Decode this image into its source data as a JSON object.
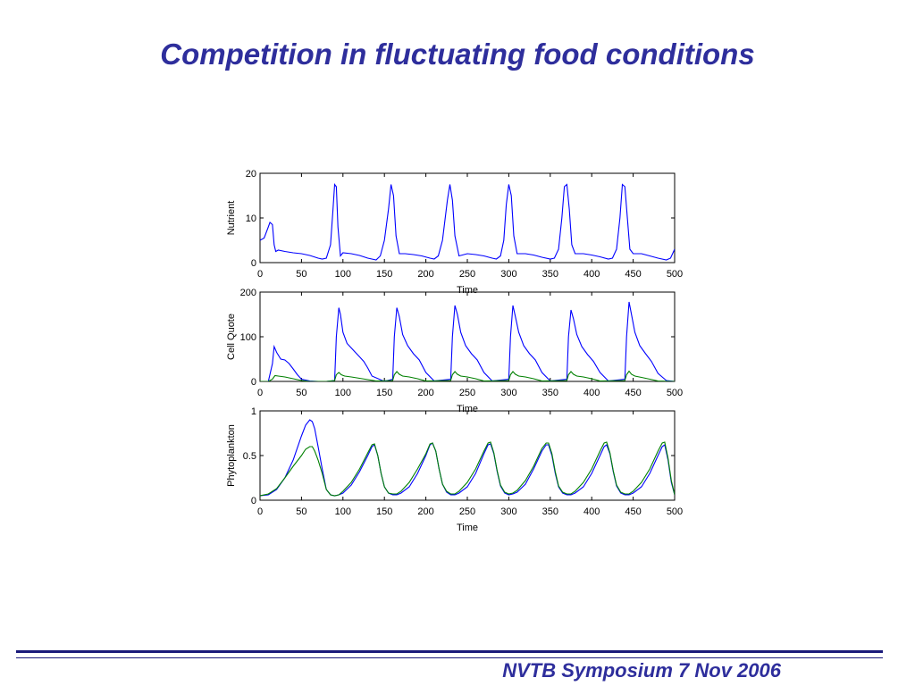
{
  "slide": {
    "title": "Competition in fluctuating food conditions",
    "footer": "NVTB Symposium 7 Nov 2006"
  },
  "colors": {
    "title": "#2e2e9c",
    "series_blue": "#0000ff",
    "series_green": "#008000"
  },
  "chart_data": [
    {
      "type": "line",
      "ylabel": "Nutrient",
      "xlabel": "Time",
      "xlim": [
        0,
        500
      ],
      "ylim": [
        0,
        20
      ],
      "xticks": [
        0,
        50,
        100,
        150,
        200,
        250,
        300,
        350,
        400,
        450,
        500
      ],
      "yticks": [
        0,
        10,
        20
      ],
      "grid": false,
      "series": [
        {
          "color": "#0000ff",
          "x": [
            0,
            5,
            10,
            12,
            15,
            17,
            19,
            22,
            30,
            40,
            50,
            60,
            70,
            75,
            80,
            85,
            88,
            90,
            92,
            94,
            97,
            100,
            110,
            120,
            130,
            140,
            145,
            150,
            155,
            158,
            161,
            164,
            168,
            175,
            185,
            195,
            205,
            210,
            215,
            220,
            226,
            229,
            232,
            235,
            240,
            250,
            260,
            270,
            280,
            285,
            290,
            294,
            297,
            300,
            303,
            306,
            310,
            320,
            330,
            340,
            350,
            355,
            360,
            364,
            367,
            370,
            373,
            376,
            380,
            390,
            400,
            410,
            420,
            425,
            430,
            434,
            437,
            440,
            443,
            446,
            450,
            460,
            470,
            480,
            490,
            495,
            500
          ],
          "y": [
            5,
            5.5,
            8,
            9,
            8.5,
            4,
            2.5,
            2.8,
            2.5,
            2.2,
            2,
            1.6,
            1,
            0.8,
            1,
            4,
            12,
            17.5,
            17,
            8,
            1.5,
            2.2,
            2,
            1.6,
            1,
            0.6,
            1.5,
            5,
            12,
            17.5,
            15,
            6,
            2,
            2,
            1.8,
            1.5,
            1,
            0.8,
            1.5,
            5,
            14,
            17.5,
            14,
            6,
            1.5,
            2,
            1.8,
            1.5,
            1,
            0.8,
            1.5,
            5,
            13,
            17.5,
            15,
            6,
            2,
            2,
            1.7,
            1.2,
            0.8,
            1,
            3,
            10,
            17,
            17.5,
            12,
            4,
            2,
            2,
            1.7,
            1.3,
            0.8,
            1,
            3,
            10,
            17.5,
            17,
            10,
            3,
            2,
            2,
            1.5,
            1,
            0.6,
            1,
            3
          ]
        }
      ]
    },
    {
      "type": "line",
      "ylabel": "Cell Quote",
      "xlabel": "Time",
      "xlim": [
        0,
        500
      ],
      "ylim": [
        0,
        200
      ],
      "xticks": [
        0,
        50,
        100,
        150,
        200,
        250,
        300,
        350,
        400,
        450,
        500
      ],
      "yticks": [
        0,
        100,
        200
      ],
      "grid": false,
      "series": [
        {
          "color": "#0000ff",
          "x": [
            0,
            10,
            15,
            17,
            20,
            25,
            30,
            35,
            40,
            45,
            50,
            60,
            70,
            80,
            90,
            92,
            95,
            97,
            100,
            105,
            110,
            115,
            120,
            125,
            130,
            135,
            150,
            160,
            162,
            165,
            168,
            172,
            178,
            185,
            192,
            200,
            210,
            230,
            232,
            235,
            238,
            242,
            248,
            255,
            262,
            270,
            280,
            300,
            302,
            305,
            308,
            312,
            318,
            325,
            332,
            340,
            350,
            370,
            372,
            375,
            378,
            382,
            388,
            395,
            402,
            410,
            420,
            440,
            442,
            445,
            448,
            452,
            458,
            465,
            472,
            480,
            490,
            500
          ],
          "y": [
            0,
            0,
            40,
            78,
            65,
            50,
            48,
            40,
            28,
            15,
            5,
            1,
            0,
            0,
            2,
            100,
            165,
            150,
            110,
            85,
            75,
            65,
            55,
            45,
            30,
            12,
            0,
            5,
            100,
            165,
            145,
            105,
            80,
            62,
            48,
            20,
            1,
            5,
            100,
            170,
            150,
            110,
            80,
            62,
            48,
            20,
            1,
            5,
            100,
            170,
            145,
            110,
            80,
            62,
            48,
            20,
            1,
            5,
            100,
            160,
            140,
            105,
            78,
            60,
            45,
            20,
            1,
            5,
            100,
            178,
            150,
            110,
            80,
            62,
            45,
            18,
            2,
            0
          ]
        },
        {
          "color": "#008000",
          "x": [
            0,
            10,
            15,
            18,
            22,
            30,
            40,
            50,
            60,
            80,
            90,
            92,
            95,
            98,
            102,
            110,
            120,
            130,
            140,
            160,
            162,
            165,
            168,
            172,
            180,
            190,
            200,
            230,
            232,
            235,
            238,
            242,
            250,
            260,
            270,
            300,
            302,
            305,
            308,
            312,
            320,
            330,
            340,
            370,
            372,
            375,
            378,
            382,
            390,
            400,
            410,
            440,
            442,
            445,
            448,
            452,
            460,
            470,
            480,
            500
          ],
          "y": [
            0,
            0,
            5,
            13,
            12,
            10,
            6,
            2,
            0,
            0,
            2,
            15,
            20,
            15,
            12,
            10,
            7,
            4,
            1,
            2,
            15,
            22,
            16,
            12,
            10,
            6,
            1,
            2,
            15,
            22,
            16,
            12,
            10,
            6,
            1,
            2,
            15,
            22,
            16,
            12,
            10,
            6,
            1,
            2,
            15,
            22,
            16,
            12,
            10,
            6,
            1,
            2,
            15,
            23,
            16,
            12,
            9,
            5,
            1,
            0
          ]
        }
      ]
    },
    {
      "type": "line",
      "ylabel": "Phytoplankton",
      "xlabel": "Time",
      "xlim": [
        0,
        500
      ],
      "ylim": [
        0,
        1
      ],
      "xticks": [
        0,
        50,
        100,
        150,
        200,
        250,
        300,
        350,
        400,
        450,
        500
      ],
      "yticks": [
        0,
        0.5,
        1
      ],
      "yticklabels": [
        "0",
        "0.5",
        "1"
      ],
      "grid": false,
      "series": [
        {
          "color": "#0000ff",
          "x": [
            0,
            10,
            20,
            30,
            40,
            50,
            55,
            60,
            63,
            66,
            70,
            75,
            80,
            85,
            90,
            95,
            100,
            110,
            120,
            130,
            135,
            138,
            142,
            146,
            150,
            155,
            160,
            165,
            170,
            180,
            190,
            200,
            205,
            208,
            212,
            216,
            220,
            225,
            230,
            235,
            240,
            250,
            260,
            270,
            275,
            278,
            282,
            286,
            290,
            295,
            300,
            305,
            310,
            320,
            330,
            340,
            345,
            348,
            352,
            356,
            360,
            365,
            370,
            375,
            380,
            390,
            400,
            410,
            415,
            418,
            422,
            426,
            430,
            435,
            440,
            445,
            450,
            460,
            470,
            480,
            485,
            488,
            492,
            496,
            500
          ],
          "y": [
            0.05,
            0.06,
            0.12,
            0.25,
            0.45,
            0.72,
            0.84,
            0.9,
            0.88,
            0.8,
            0.6,
            0.35,
            0.12,
            0.06,
            0.05,
            0.06,
            0.08,
            0.17,
            0.32,
            0.5,
            0.6,
            0.62,
            0.5,
            0.3,
            0.15,
            0.08,
            0.06,
            0.06,
            0.08,
            0.15,
            0.3,
            0.5,
            0.62,
            0.64,
            0.55,
            0.35,
            0.18,
            0.09,
            0.06,
            0.06,
            0.08,
            0.15,
            0.3,
            0.52,
            0.62,
            0.63,
            0.52,
            0.32,
            0.16,
            0.08,
            0.06,
            0.07,
            0.09,
            0.18,
            0.35,
            0.55,
            0.62,
            0.62,
            0.5,
            0.3,
            0.15,
            0.08,
            0.06,
            0.06,
            0.08,
            0.15,
            0.3,
            0.5,
            0.6,
            0.62,
            0.52,
            0.32,
            0.16,
            0.08,
            0.06,
            0.06,
            0.08,
            0.15,
            0.3,
            0.5,
            0.6,
            0.62,
            0.45,
            0.2,
            0.06
          ]
        },
        {
          "color": "#008000",
          "x": [
            0,
            10,
            20,
            30,
            40,
            50,
            55,
            60,
            63,
            66,
            70,
            75,
            80,
            85,
            90,
            95,
            100,
            110,
            120,
            130,
            135,
            138,
            142,
            146,
            150,
            155,
            160,
            165,
            170,
            180,
            190,
            200,
            205,
            208,
            212,
            216,
            220,
            225,
            230,
            235,
            240,
            250,
            260,
            270,
            275,
            278,
            282,
            286,
            290,
            295,
            300,
            305,
            310,
            320,
            330,
            340,
            345,
            348,
            352,
            356,
            360,
            365,
            370,
            375,
            380,
            390,
            400,
            410,
            415,
            418,
            422,
            426,
            430,
            435,
            440,
            445,
            450,
            460,
            470,
            480,
            485,
            488,
            492,
            496,
            500
          ],
          "y": [
            0.05,
            0.07,
            0.13,
            0.25,
            0.38,
            0.5,
            0.57,
            0.6,
            0.6,
            0.55,
            0.45,
            0.3,
            0.12,
            0.06,
            0.05,
            0.06,
            0.1,
            0.2,
            0.35,
            0.53,
            0.62,
            0.63,
            0.5,
            0.3,
            0.15,
            0.08,
            0.07,
            0.07,
            0.1,
            0.2,
            0.35,
            0.52,
            0.63,
            0.64,
            0.55,
            0.35,
            0.18,
            0.1,
            0.07,
            0.07,
            0.1,
            0.2,
            0.35,
            0.55,
            0.64,
            0.65,
            0.53,
            0.33,
            0.17,
            0.09,
            0.07,
            0.08,
            0.11,
            0.22,
            0.38,
            0.58,
            0.64,
            0.64,
            0.52,
            0.32,
            0.16,
            0.09,
            0.07,
            0.07,
            0.1,
            0.2,
            0.35,
            0.55,
            0.64,
            0.65,
            0.53,
            0.33,
            0.17,
            0.09,
            0.07,
            0.07,
            0.1,
            0.2,
            0.35,
            0.55,
            0.64,
            0.65,
            0.47,
            0.22,
            0.06
          ]
        }
      ]
    }
  ]
}
